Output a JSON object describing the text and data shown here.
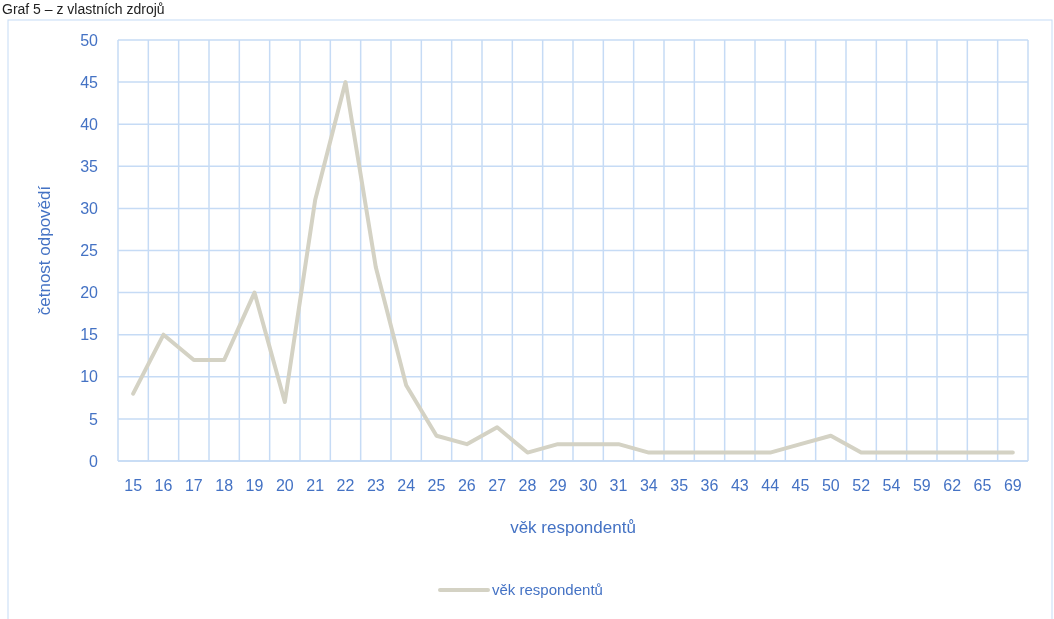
{
  "chart_data": {
    "type": "line",
    "annotations": [
      "Graf 5 – z vlastních zdrojů"
    ],
    "xlabel": "věk respondentů",
    "ylabel": "četnost odpovědí",
    "categories": [
      "15",
      "16",
      "17",
      "18",
      "19",
      "20",
      "21",
      "22",
      "23",
      "24",
      "25",
      "26",
      "27",
      "28",
      "29",
      "30",
      "31",
      "34",
      "35",
      "36",
      "43",
      "44",
      "45",
      "50",
      "52",
      "54",
      "59",
      "62",
      "65",
      "69"
    ],
    "series": [
      {
        "name": "věk respondentů",
        "color": "#d4d2c4",
        "values": [
          8,
          15,
          12,
          12,
          20,
          7,
          31,
          45,
          23,
          9,
          3,
          2,
          4,
          1,
          2,
          2,
          2,
          1,
          1,
          1,
          1,
          1,
          2,
          3,
          1,
          1,
          1,
          1,
          1,
          1
        ]
      }
    ],
    "ylim": [
      0,
      50
    ],
    "yticks": [
      0,
      5,
      10,
      15,
      20,
      25,
      30,
      35,
      40,
      45,
      50
    ],
    "grid": true,
    "legend": "bottom",
    "marker": "none",
    "line_style": "solid"
  }
}
